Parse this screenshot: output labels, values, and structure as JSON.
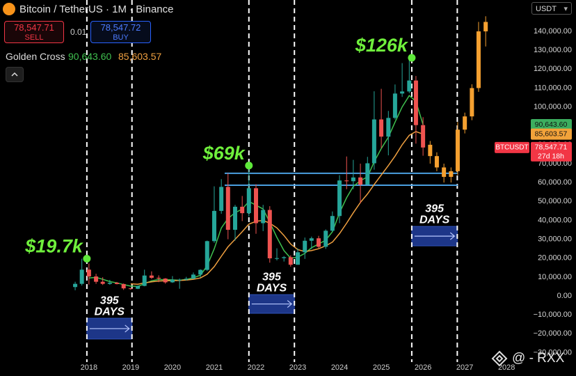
{
  "header": {
    "title": "Bitcoin / TetherUS · 1M · Binance",
    "sell_label": "SELL",
    "spread": "0.01",
    "buy_price": "78,547.72",
    "buy_label": "BUY",
    "indicator": "Golden Cross",
    "currency": "USDT",
    "watermark": "@ - RXX"
  },
  "chart_data": {
    "type": "candlestick",
    "ylim": [
      -35000,
      156600
    ],
    "yticks": [
      {
        "value": 140000,
        "label": "140,000.00"
      },
      {
        "value": 130000,
        "label": "130,000.00"
      },
      {
        "value": 120000,
        "label": "120,000.00"
      },
      {
        "value": 110000,
        "label": "110,000.00"
      },
      {
        "value": 100000,
        "label": "100,000.00"
      },
      {
        "value": 90000,
        "label": "90,000.00"
      },
      {
        "value": 80000,
        "label": "80,000.00"
      },
      {
        "value": 70000,
        "label": "70,000.00"
      },
      {
        "value": 60000,
        "label": "60,000.00"
      },
      {
        "value": 50000,
        "label": "50,000.00"
      },
      {
        "value": 40000,
        "label": "40,000.00"
      },
      {
        "value": 30000,
        "label": "30,000.00"
      },
      {
        "value": 20000,
        "label": "20,000.00"
      },
      {
        "value": 10000,
        "label": "10,000.00"
      },
      {
        "value": 0,
        "label": "0.00"
      },
      {
        "value": -10000,
        "label": "−10,000.00"
      },
      {
        "value": -20000,
        "label": "−20,000.00"
      },
      {
        "value": -30000,
        "label": "−30,000.00"
      }
    ],
    "xlim": [
      2015.87,
      2028.53
    ],
    "xticks": [
      2018,
      2019,
      2020,
      2021,
      2022,
      2023,
      2024,
      2025,
      2026,
      2027,
      2028
    ],
    "grid": false,
    "candles": [
      {
        "up_color": "#26a69a",
        "down_color": "#ef5350",
        "x": [
          2017.67,
          2017.83,
          2018,
          2018.17,
          2018.33,
          2018.5,
          2018.67,
          2018.83,
          2019,
          2019.17,
          2019.33,
          2019.5,
          2019.67,
          2019.83,
          2020,
          2020.17,
          2020.33,
          2020.5,
          2020.67,
          2020.83,
          2021,
          2021.17,
          2021.33,
          2021.5,
          2021.67,
          2021.83,
          2022,
          2022.17,
          2022.33,
          2022.5,
          2022.67,
          2022.83,
          2023,
          2023.17,
          2023.33,
          2023.5,
          2023.67,
          2023.83,
          2024,
          2024.17,
          2024.33,
          2024.5,
          2024.67,
          2024.83,
          2025,
          2025.17,
          2025.33,
          2025.5,
          2025.67,
          2025.83,
          2026
        ],
        "open": [
          4700,
          6400,
          13900,
          10300,
          7500,
          6400,
          7000,
          6300,
          4000,
          3800,
          5300,
          10800,
          9600,
          9200,
          7200,
          8600,
          8600,
          9100,
          11300,
          13800,
          29000,
          45000,
          57700,
          35000,
          47200,
          43800,
          57000,
          38500,
          45500,
          19900,
          20000,
          20500,
          16500,
          23100,
          29200,
          30500,
          26000,
          34500,
          42300,
          61100,
          60700,
          62700,
          58900,
          70200,
          93400,
          84300,
          94200,
          107100,
          108200,
          114000,
          90400
        ],
        "high": [
          7500,
          19700,
          17200,
          11700,
          9900,
          8500,
          7400,
          6600,
          4200,
          5500,
          13900,
          13000,
          10900,
          9400,
          10500,
          9200,
          10100,
          12400,
          14100,
          29300,
          58000,
          61800,
          64900,
          48200,
          52900,
          69000,
          59100,
          48200,
          47500,
          25200,
          21100,
          21500,
          25200,
          30900,
          31400,
          31800,
          35200,
          44700,
          63900,
          73800,
          72000,
          70000,
          73600,
          108300,
          109600,
          97900,
          111900,
          123200,
          126000,
          116400,
          94600
        ],
        "low": [
          3000,
          5500,
          6000,
          6400,
          5800,
          5900,
          6100,
          3200,
          3300,
          3600,
          5100,
          9000,
          7300,
          6500,
          6900,
          3800,
          8100,
          9000,
          9800,
          13200,
          28100,
          43500,
          30000,
          29300,
          39600,
          42000,
          32900,
          34300,
          17600,
          18800,
          18200,
          15500,
          16500,
          19600,
          24800,
          25400,
          24900,
          34100,
          38500,
          56500,
          56500,
          49000,
          58900,
          66800,
          78200,
          74400,
          93400,
          105300,
          107300,
          80600,
          74200
        ],
        "close": [
          6400,
          13900,
          10300,
          7500,
          6400,
          7000,
          6300,
          4000,
          3800,
          5300,
          10800,
          9600,
          9200,
          7200,
          8600,
          8600,
          9100,
          11300,
          13800,
          29000,
          45000,
          57700,
          35000,
          47200,
          43800,
          57000,
          38500,
          45500,
          19900,
          20000,
          20500,
          16500,
          23100,
          29200,
          30500,
          26000,
          34500,
          42300,
          61100,
          60700,
          62700,
          58900,
          70200,
          93400,
          84300,
          94200,
          107100,
          108200,
          114000,
          90400,
          78547.71
        ]
      },
      {
        "up_color": "#f5a030",
        "down_color": "#f5a030",
        "x": [
          2026.17,
          2026.33,
          2026.5,
          2026.67,
          2026.83,
          2027,
          2027.17,
          2027.33,
          2027.5
        ],
        "open": [
          80000,
          74000,
          68000,
          63000,
          66000,
          88000,
          95000,
          110000,
          140000
        ],
        "high": [
          82000,
          76000,
          70000,
          68000,
          92000,
          97000,
          112000,
          145000,
          148000
        ],
        "low": [
          70000,
          66000,
          60000,
          60000,
          64000,
          86000,
          93000,
          108000,
          132000
        ],
        "close": [
          74000,
          68000,
          63000,
          66000,
          88000,
          95000,
          110000,
          140000,
          145000
        ]
      }
    ],
    "lines": [
      {
        "color": "#3fbf4f",
        "values": [
          null,
          null,
          9500,
          9800,
          8800,
          7600,
          6900,
          6000,
          5200,
          5000,
          6500,
          8000,
          8700,
          8600,
          8500,
          8300,
          8700,
          9600,
          11000,
          16000,
          25000,
          36000,
          41000,
          44000,
          46000,
          50000,
          48000,
          46000,
          39000,
          31000,
          24000,
          20000,
          20500,
          22500,
          25500,
          27500,
          29500,
          34000,
          44000,
          52000,
          58000,
          61000,
          63000,
          71000,
          78000,
          84000,
          92000,
          100000,
          106000,
          103000,
          90643.6
        ]
      },
      {
        "color": "#f0a040",
        "values": [
          null,
          null,
          null,
          null,
          null,
          null,
          null,
          null,
          6400,
          6200,
          6900,
          7500,
          7900,
          8000,
          8100,
          8200,
          8400,
          8800,
          9500,
          11500,
          15500,
          21000,
          26000,
          30000,
          34000,
          38000,
          39500,
          40000,
          38500,
          36000,
          32000,
          27500,
          24500,
          23500,
          24000,
          25000,
          26500,
          28500,
          33000,
          38500,
          44000,
          49500,
          54000,
          59000,
          64000,
          69000,
          74000,
          80000,
          85000,
          87000,
          85603.57
        ]
      }
    ],
    "price_labels": [
      {
        "value": 90643.6,
        "label": "90,643.60",
        "color": "#3cae5f"
      },
      {
        "value": 85603.57,
        "label": "85,603.57",
        "color": "#f2a23a"
      },
      {
        "value": 78547.71,
        "label": "78,547.71",
        "color": "#f23645",
        "ticker": "BTCUSDT",
        "countdown": "27d 18h"
      }
    ],
    "annotations": [
      {
        "x": 2017.95,
        "value": 19700,
        "label": "$19.7k"
      },
      {
        "x": 2021.83,
        "value": 69000,
        "label": "$69k"
      },
      {
        "x": 2025.73,
        "value": 126000,
        "label": "$126k"
      }
    ],
    "hlines": [
      {
        "value": 64900,
        "x": [
          2021.25,
          2026.83
        ],
        "color": "#4a9fe0"
      },
      {
        "value": 58600,
        "x": [
          2021.25,
          2026.83
        ],
        "color": "#4a9fe0"
      }
    ],
    "vlines": [
      2017.95,
      2019.03,
      2021.83,
      2022.92,
      2025.73,
      2026.82
    ],
    "periods": [
      {
        "x": [
          2017.95,
          2019.03
        ],
        "range": [
          -22800,
          -11800
        ],
        "label": "395",
        "unit": "DAYS"
      },
      {
        "x": [
          2021.83,
          2022.92
        ],
        "range": [
          -9200,
          700
        ],
        "label": "395",
        "unit": "DAYS"
      },
      {
        "x": [
          2025.73,
          2026.82
        ],
        "range": [
          26500,
          36800
        ],
        "label": "395",
        "unit": "DAYS"
      }
    ]
  }
}
